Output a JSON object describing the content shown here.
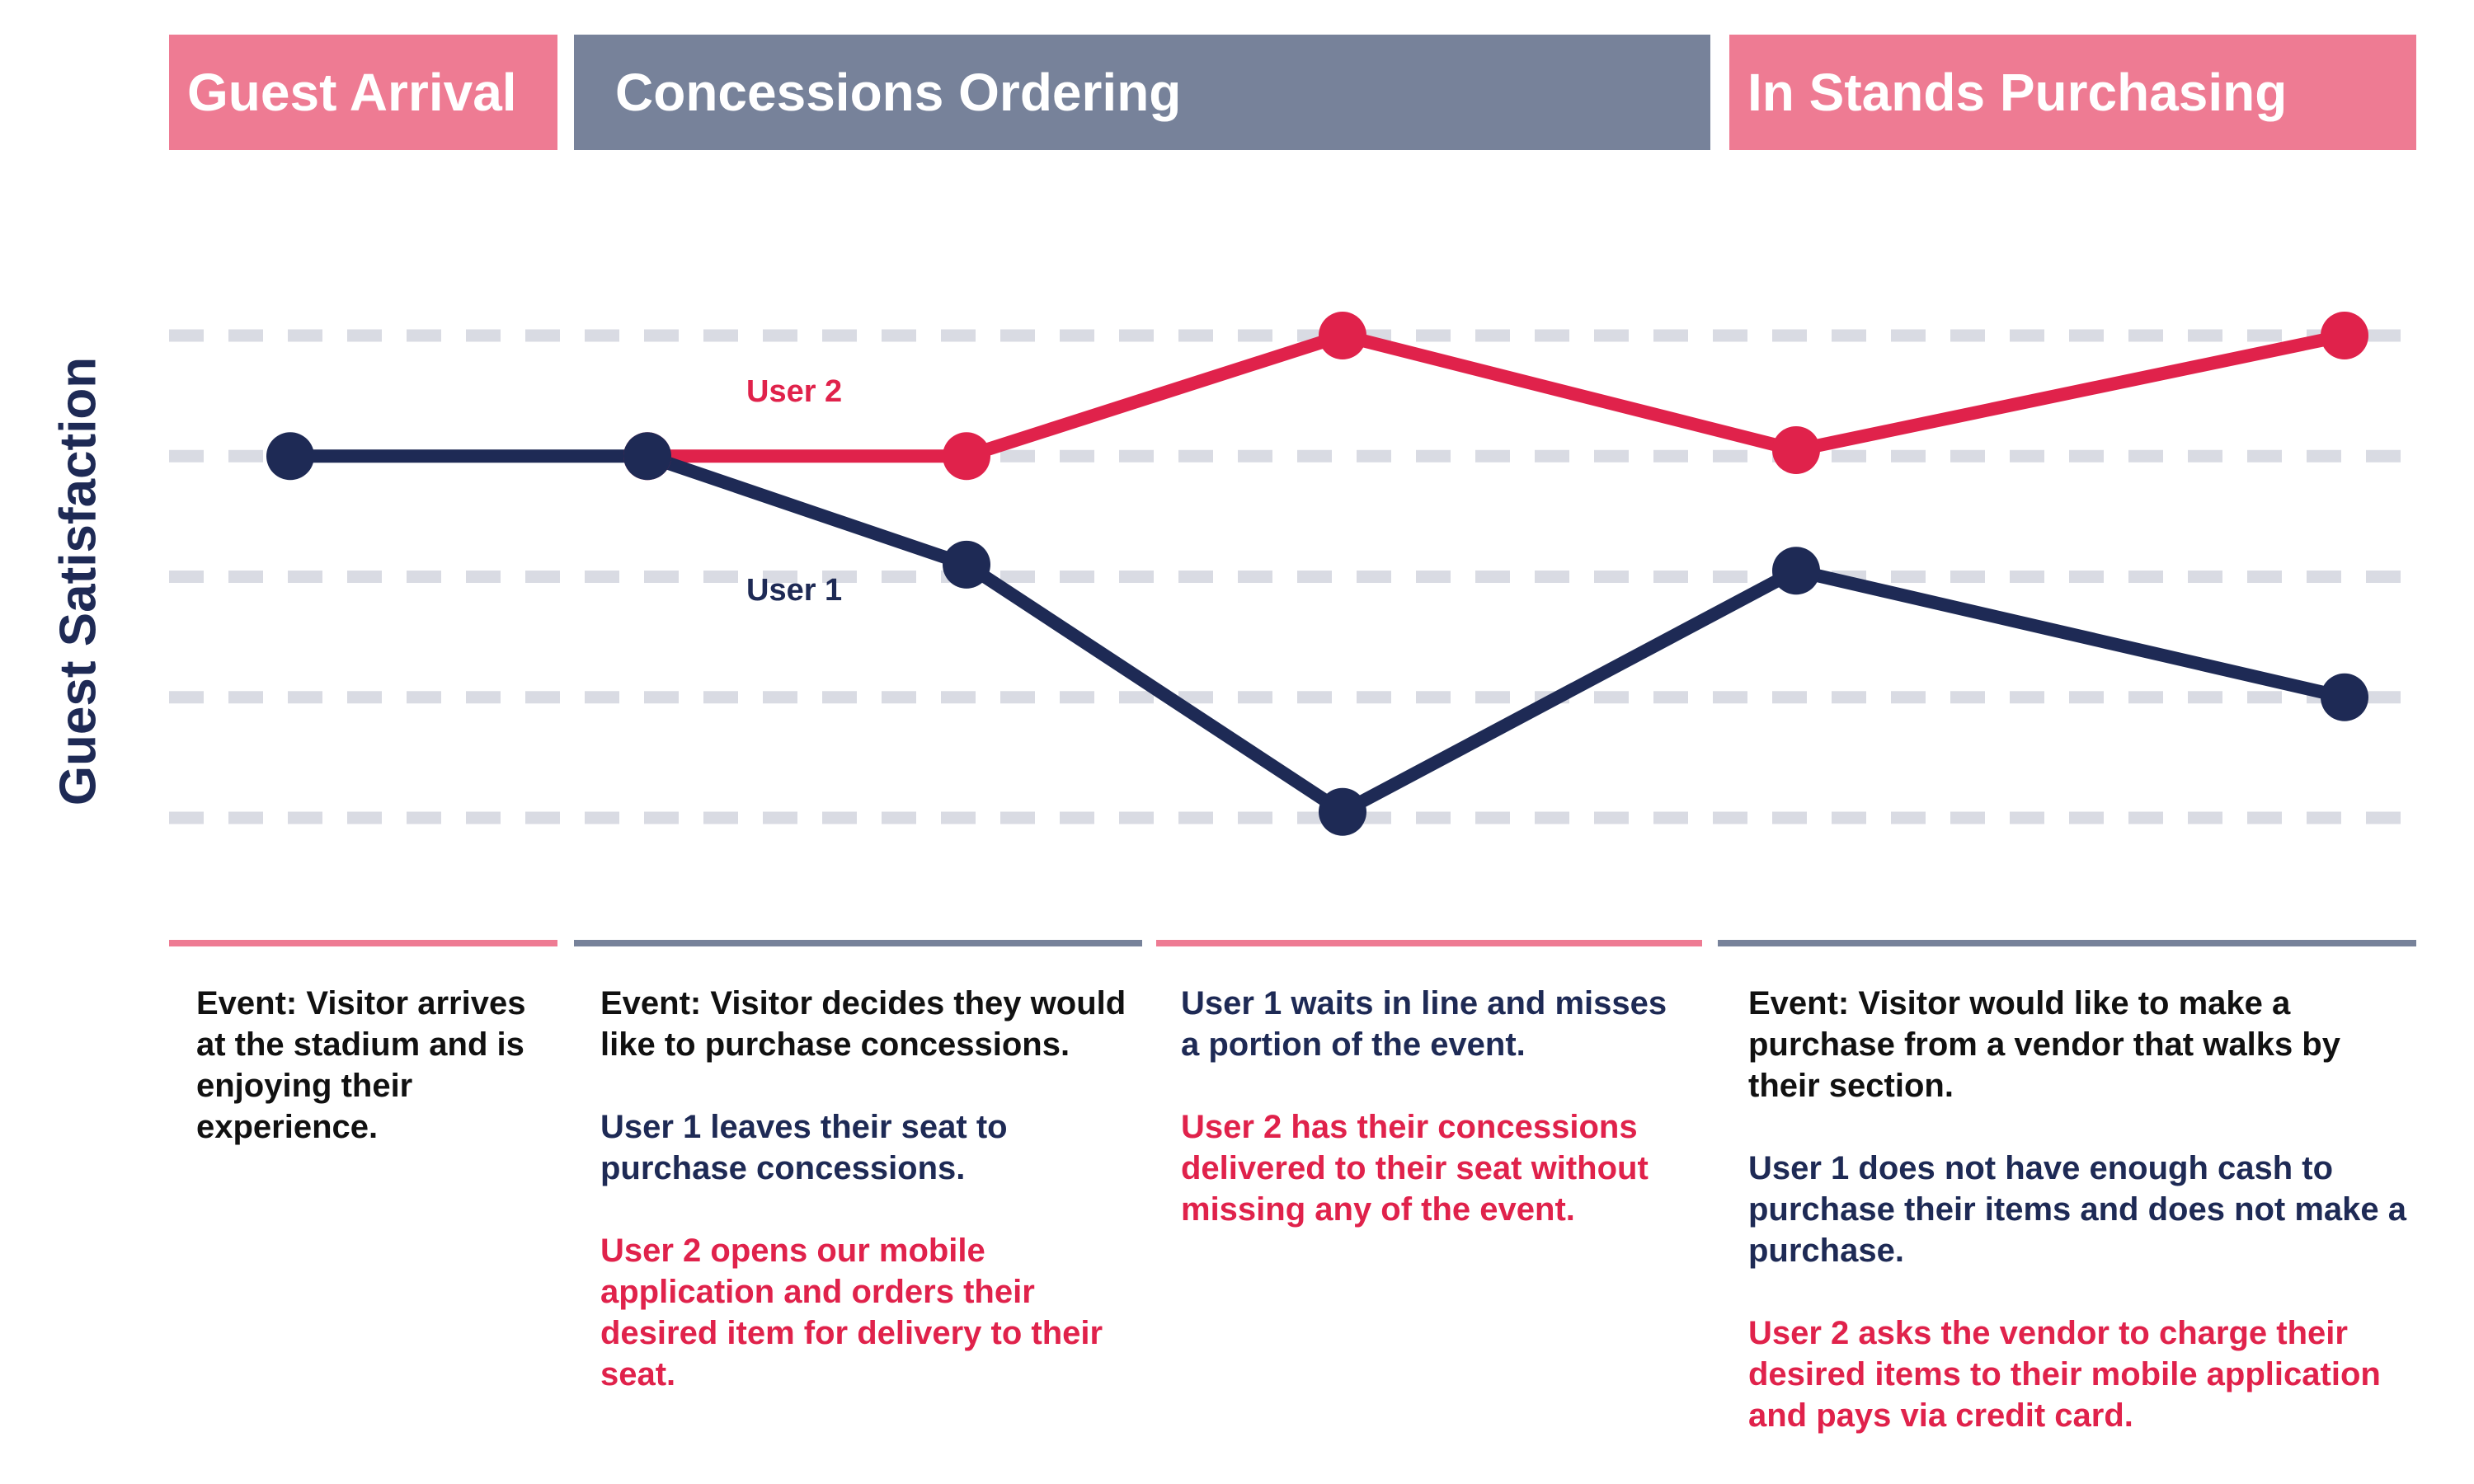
{
  "phases": [
    {
      "label": "Guest Arrival",
      "color": "#ee7b93"
    },
    {
      "label": "Concessions Ordering",
      "color": "#77829a"
    },
    {
      "label": "In Stands Purchasing",
      "color": "#ee7b93"
    }
  ],
  "y_axis_label": "Guest Satisfaction",
  "chart_data": {
    "type": "line",
    "grid": "dashed",
    "levels": 5,
    "steps": 7,
    "series": [
      {
        "name": "User 1",
        "color": "#1e2a55",
        "values": [
          4,
          4,
          3.1,
          1.05,
          3.05,
          2,
          null
        ]
      },
      {
        "name": "User 2",
        "color": "#e0224b",
        "values": [
          null,
          4,
          4,
          5,
          4.05,
          5,
          null
        ]
      }
    ]
  },
  "descriptions": [
    {
      "line_color": "#ee7b93",
      "paragraphs": [
        {
          "text": "Event: Visitor arrives at the stadium and is enjoying their experience.",
          "tone": "black"
        }
      ]
    },
    {
      "line_color": "#77829a",
      "paragraphs": [
        {
          "text": "Event: Visitor decides they would like to purchase concessions.",
          "tone": "black"
        },
        {
          "text": "User 1 leaves their seat to purchase concessions.",
          "tone": "navy"
        },
        {
          "text": "User 2 opens our mobile application and orders their desired item for delivery to their seat.",
          "tone": "red"
        }
      ]
    },
    {
      "line_color": "#ee7b93",
      "paragraphs": [
        {
          "text": "User 1 waits in line and misses a portion of the event.",
          "tone": "navy"
        },
        {
          "text": "User 2 has their concessions delivered to their seat without missing any of the event.",
          "tone": "red"
        }
      ]
    },
    {
      "line_color": "#77829a",
      "paragraphs": [
        {
          "text": "Event: Visitor would like to make a purchase from a vendor that walks by their section.",
          "tone": "black"
        },
        {
          "text": "User 1 does not have enough cash to purchase their items and does not make a purchase.",
          "tone": "navy"
        },
        {
          "text": "User 2 asks the vendor to charge their desired items to their mobile application and pays via credit card.",
          "tone": "red"
        }
      ]
    }
  ]
}
